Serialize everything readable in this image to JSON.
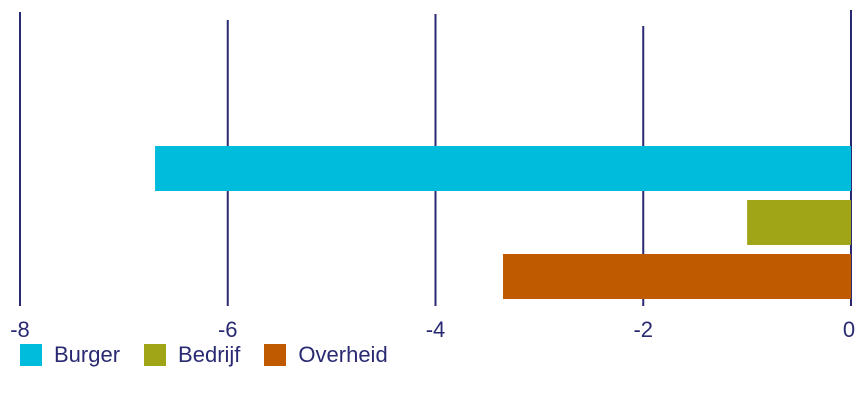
{
  "chart_data": {
    "type": "bar",
    "orientation": "horizontal",
    "title": "",
    "xlabel": "",
    "ylabel": "",
    "xlim": [
      -8,
      0
    ],
    "x_ticks": [
      "-8",
      "-6",
      "-4",
      "-2",
      "0"
    ],
    "grid": "vertical",
    "legend_position": "bottom-left",
    "series": [
      {
        "name": "Burger",
        "value": -6.7,
        "color": "#00bcdc"
      },
      {
        "name": "Bedrijf",
        "value": -1.0,
        "color": "#a0a518"
      },
      {
        "name": "Overheid",
        "value": -3.35,
        "color": "#c05a00"
      }
    ],
    "gridline_color": "#2a2a72"
  }
}
